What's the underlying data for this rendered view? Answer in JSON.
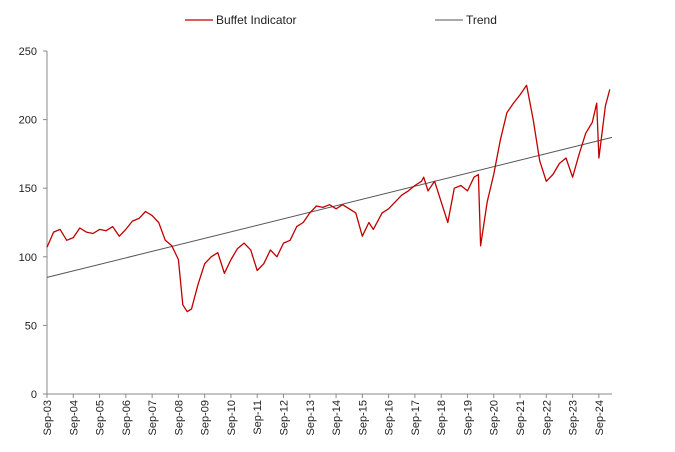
{
  "chart_data": {
    "type": "line",
    "title": "",
    "xlabel": "",
    "ylabel": "",
    "x_range": [
      "2003-09",
      "2025-03"
    ],
    "ylim": [
      0,
      250
    ],
    "y_ticks": [
      0,
      50,
      100,
      150,
      200,
      250
    ],
    "x_tick_labels": [
      "Sep-03",
      "Sep-04",
      "Sep-05",
      "Sep-06",
      "Sep-07",
      "Sep-08",
      "Sep-09",
      "Sep-10",
      "Sep-11",
      "Sep-12",
      "Sep-13",
      "Sep-14",
      "Sep-15",
      "Sep-16",
      "Sep-17",
      "Sep-18",
      "Sep-19",
      "Sep-20",
      "Sep-21",
      "Sep-22",
      "Sep-23",
      "Sep-24"
    ],
    "grid": false,
    "legend_position": "top",
    "series": [
      {
        "name": "Buffet Indicator",
        "color": "#c00000",
        "x": [
          "2003-09",
          "2003-12",
          "2004-03",
          "2004-06",
          "2004-09",
          "2004-12",
          "2005-03",
          "2005-06",
          "2005-09",
          "2005-12",
          "2006-03",
          "2006-06",
          "2006-09",
          "2006-12",
          "2007-03",
          "2007-06",
          "2007-09",
          "2007-12",
          "2008-03",
          "2008-06",
          "2008-09",
          "2008-11",
          "2009-01",
          "2009-03",
          "2009-06",
          "2009-09",
          "2009-12",
          "2010-03",
          "2010-06",
          "2010-09",
          "2010-12",
          "2011-03",
          "2011-06",
          "2011-09",
          "2011-12",
          "2012-03",
          "2012-06",
          "2012-09",
          "2012-12",
          "2013-03",
          "2013-06",
          "2013-09",
          "2013-12",
          "2014-03",
          "2014-06",
          "2014-09",
          "2014-12",
          "2015-03",
          "2015-06",
          "2015-09",
          "2015-12",
          "2016-02",
          "2016-06",
          "2016-09",
          "2016-12",
          "2017-03",
          "2017-06",
          "2017-09",
          "2017-12",
          "2018-01",
          "2018-03",
          "2018-06",
          "2018-09",
          "2018-12",
          "2019-03",
          "2019-06",
          "2019-09",
          "2019-12",
          "2020-02",
          "2020-03",
          "2020-06",
          "2020-09",
          "2020-12",
          "2021-03",
          "2021-06",
          "2021-09",
          "2021-12",
          "2022-03",
          "2022-06",
          "2022-09",
          "2022-12",
          "2023-03",
          "2023-06",
          "2023-09",
          "2023-12",
          "2024-03",
          "2024-06",
          "2024-08",
          "2024-09",
          "2024-12",
          "2025-02"
        ],
        "y": [
          107,
          118,
          120,
          112,
          114,
          121,
          118,
          117,
          120,
          119,
          122,
          115,
          120,
          126,
          128,
          133,
          130,
          125,
          112,
          108,
          98,
          65,
          60,
          62,
          80,
          95,
          100,
          103,
          88,
          98,
          106,
          110,
          105,
          90,
          95,
          105,
          100,
          110,
          112,
          122,
          125,
          132,
          137,
          136,
          138,
          135,
          138,
          135,
          132,
          115,
          125,
          120,
          132,
          135,
          140,
          145,
          148,
          152,
          155,
          158,
          148,
          155,
          140,
          125,
          150,
          152,
          148,
          158,
          160,
          108,
          140,
          160,
          185,
          205,
          212,
          218,
          225,
          200,
          170,
          155,
          160,
          168,
          172,
          158,
          175,
          190,
          198,
          212,
          172,
          210,
          222
        ]
      },
      {
        "name": "Trend",
        "color": "#555555",
        "x": [
          "2003-09",
          "2025-03"
        ],
        "y": [
          85,
          187
        ]
      }
    ]
  }
}
